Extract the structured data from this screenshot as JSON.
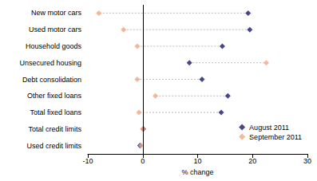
{
  "chart_data": {
    "type": "scatter",
    "orientation": "horizontal",
    "categories": [
      "New motor cars",
      "Used motor cars",
      "Household goods",
      "Unsecured housing",
      "Debt consolidation",
      "Other fixed loans",
      "Total fixed loans",
      "Total credit limits",
      "Used credit limits"
    ],
    "series": [
      {
        "name": "August 2011",
        "color": "#1b1b6b",
        "marker": "diamond",
        "values": [
          19.2,
          19.5,
          14.5,
          8.5,
          10.8,
          15.5,
          14.3,
          0.1,
          -0.5
        ]
      },
      {
        "name": "September 2011",
        "color": "#f4a582",
        "marker": "diamond",
        "values": [
          -8.0,
          -3.5,
          -1.0,
          22.5,
          -1.0,
          2.3,
          -0.7,
          0.0,
          -0.3
        ]
      }
    ],
    "x_label": "% change",
    "xlim": [
      -10,
      30
    ],
    "xticks": [
      -10,
      0,
      10,
      20,
      30
    ],
    "grid": false,
    "legend": "lower right"
  }
}
